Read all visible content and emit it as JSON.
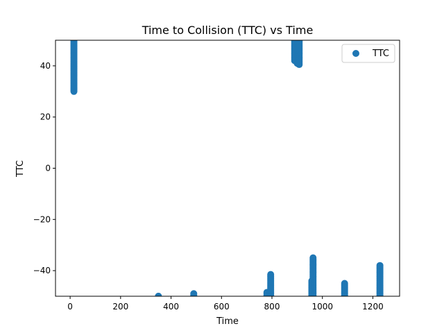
{
  "chart_data": {
    "type": "scatter",
    "title": "Time to Collision (TTC) vs Time",
    "xlabel": "Time",
    "ylabel": "TTC",
    "xlim": [
      -58,
      1306
    ],
    "ylim": [
      -50,
      50
    ],
    "xticks": [
      0,
      200,
      400,
      600,
      800,
      1000,
      1200
    ],
    "yticks": [
      -40,
      -20,
      0,
      20,
      40
    ],
    "xtick_labels": [
      "0",
      "200",
      "400",
      "600",
      "800",
      "1000",
      "1200"
    ],
    "ytick_labels": [
      "−40",
      "−20",
      "0",
      "20",
      "40"
    ],
    "grid": false,
    "legend": {
      "position": "top-right",
      "entries": [
        "TTC"
      ]
    },
    "series": [
      {
        "name": "TTC",
        "color": "#1f77b4",
        "marker": "circle",
        "clusters": [
          {
            "x": 15,
            "y_min": 30,
            "y_max": 50
          },
          {
            "x": 350,
            "y_min": -50,
            "y_max": -50
          },
          {
            "x": 490,
            "y_min": -50,
            "y_max": -49
          },
          {
            "x": 780,
            "y_min": -50,
            "y_max": -48.5
          },
          {
            "x": 795,
            "y_min": -50,
            "y_max": -41.5
          },
          {
            "x": 890,
            "y_min": 42,
            "y_max": 50
          },
          {
            "x": 900,
            "y_min": 41,
            "y_max": 50
          },
          {
            "x": 908,
            "y_min": 40.5,
            "y_max": 50
          },
          {
            "x": 958,
            "y_min": -50,
            "y_max": -44
          },
          {
            "x": 963,
            "y_min": -50,
            "y_max": -35
          },
          {
            "x": 1088,
            "y_min": -50,
            "y_max": -45
          },
          {
            "x": 1228,
            "y_min": -50,
            "y_max": -38
          }
        ]
      }
    ]
  }
}
